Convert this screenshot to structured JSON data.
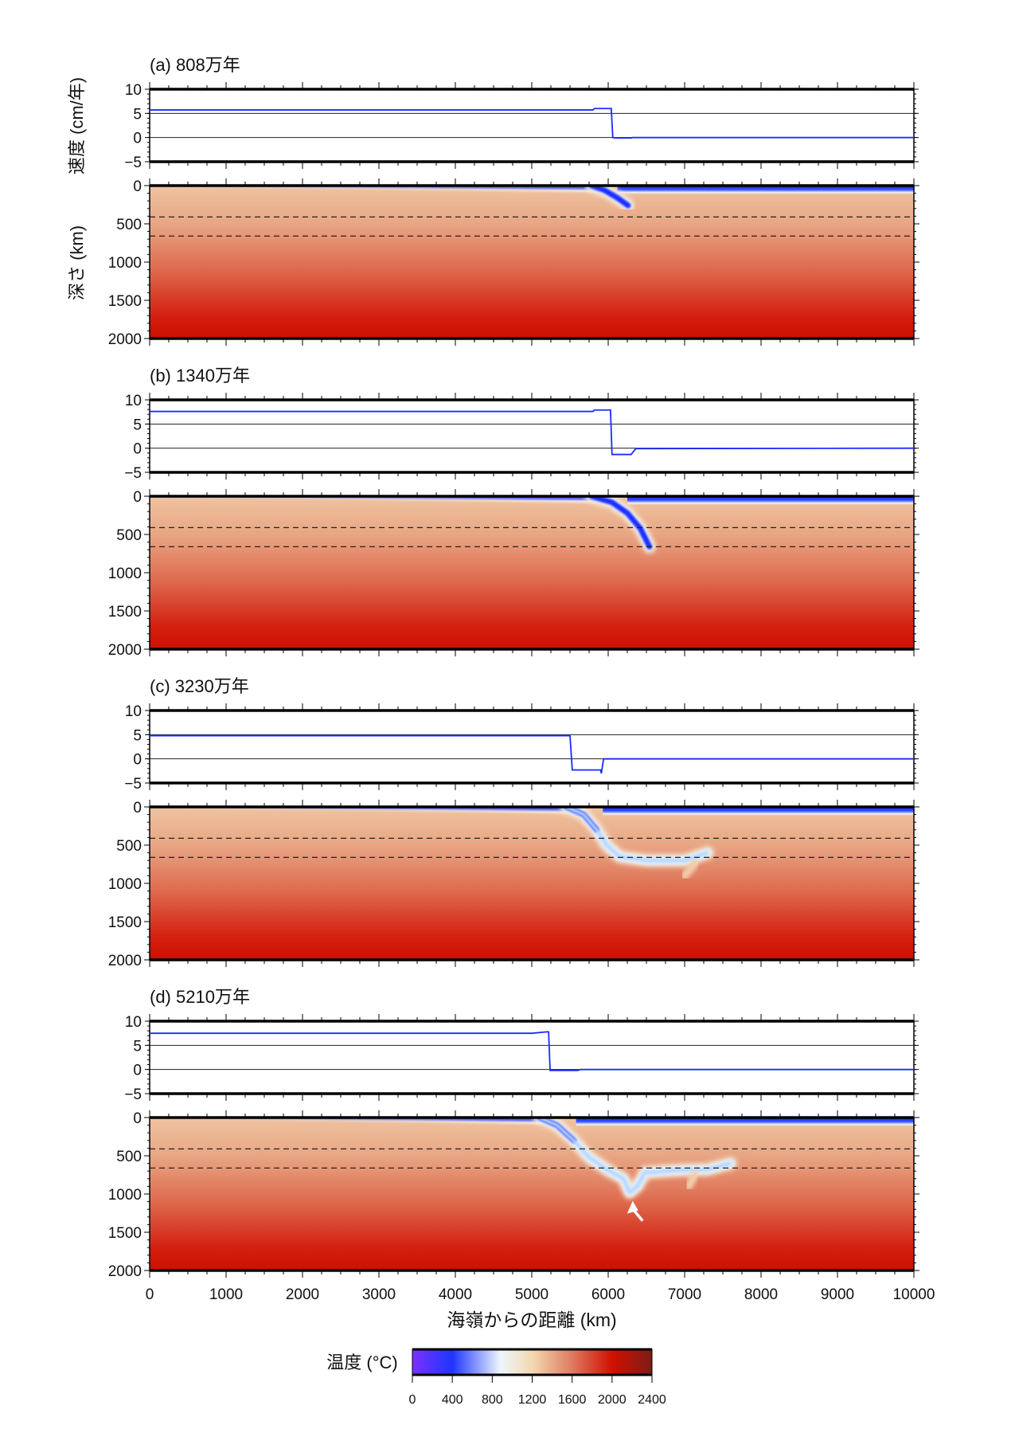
{
  "chart_data": [
    {
      "type": "line",
      "panel": "a",
      "title": "(a) 808万年",
      "velocity": {
        "x": [
          0,
          5800,
          5820,
          6040,
          6060,
          6100,
          6300,
          6320,
          10000
        ],
        "y": [
          5.7,
          5.7,
          6.0,
          6.0,
          0.0,
          -0.1,
          -0.1,
          0,
          0
        ]
      },
      "slab": [
        [
          5780,
          0
        ],
        [
          5950,
          60
        ],
        [
          6120,
          160
        ],
        [
          6260,
          260
        ]
      ],
      "slab_cold_core": true,
      "trench_x": 5800
    },
    {
      "type": "line",
      "panel": "b",
      "title": "(b) 1340万年",
      "velocity": {
        "x": [
          0,
          5800,
          5820,
          6030,
          6050,
          6300,
          6360,
          10000
        ],
        "y": [
          7.6,
          7.6,
          7.9,
          7.9,
          -1.3,
          -1.3,
          -0.1,
          0
        ]
      },
      "slab": [
        [
          5780,
          0
        ],
        [
          6050,
          80
        ],
        [
          6250,
          220
        ],
        [
          6420,
          420
        ],
        [
          6540,
          660
        ]
      ],
      "slab_cold_core": true,
      "trench_x": 5800
    },
    {
      "type": "line",
      "panel": "c",
      "title": "(c) 3230万年",
      "velocity": {
        "x": [
          0,
          5500,
          5530,
          5900,
          5910,
          5940,
          10000
        ],
        "y": [
          4.8,
          4.8,
          -2.3,
          -2.3,
          -3.0,
          0,
          0
        ]
      },
      "slab": [
        [
          5450,
          0
        ],
        [
          5680,
          100
        ],
        [
          5850,
          300
        ],
        [
          5980,
          500
        ],
        [
          6150,
          650
        ],
        [
          6500,
          700
        ],
        [
          7000,
          700
        ],
        [
          7300,
          600
        ]
      ],
      "ghost": [
        [
          7150,
          720
        ],
        [
          7000,
          900
        ]
      ],
      "slab_cold_core": false,
      "trench_x": 5500
    },
    {
      "type": "line",
      "panel": "d",
      "title": "(d) 5210万年",
      "velocity": {
        "x": [
          0,
          5000,
          5200,
          5220,
          5240,
          5600,
          5640,
          10000
        ],
        "y": [
          7.5,
          7.5,
          7.8,
          7.8,
          -0.2,
          -0.2,
          0,
          0
        ]
      },
      "slab": [
        [
          5100,
          0
        ],
        [
          5330,
          100
        ],
        [
          5550,
          300
        ],
        [
          5750,
          520
        ],
        [
          6000,
          690
        ],
        [
          6200,
          800
        ],
        [
          6280,
          980
        ],
        [
          6380,
          900
        ],
        [
          6480,
          720
        ],
        [
          6900,
          690
        ],
        [
          7300,
          680
        ],
        [
          7600,
          600
        ]
      ],
      "ghost": [
        [
          7150,
          720
        ],
        [
          7050,
          900
        ]
      ],
      "slab_cold_core": false,
      "trench_x": 5100,
      "arrow": {
        "from": [
          6450,
          1350
        ],
        "to": [
          6320,
          1090
        ]
      }
    }
  ],
  "axes": {
    "velocity_ylabel": "速度 (cm/年)",
    "depth_ylabel": "深さ (km)",
    "xlabel": "海嶺からの距離 (km)",
    "x_range": [
      0,
      10000
    ],
    "x_ticks": [
      "0",
      "1000",
      "2000",
      "3000",
      "4000",
      "5000",
      "6000",
      "7000",
      "8000",
      "9000",
      "10000"
    ],
    "velocity_range": [
      -5,
      10
    ],
    "velocity_ticks": [
      "10",
      "5",
      "0",
      "−5"
    ],
    "depth_range": [
      0,
      2000
    ],
    "depth_ticks": [
      "0",
      "500",
      "1000",
      "1500",
      "2000"
    ],
    "reference_lines_velocity": [
      5,
      0
    ],
    "dashed_depths_km": [
      410,
      660
    ]
  },
  "colorbar": {
    "label": "温度 (°C)",
    "ticks": [
      "0",
      "400",
      "800",
      "1200",
      "1600",
      "2000",
      "2400"
    ],
    "range": [
      0,
      2400
    ],
    "stops": [
      {
        "t": 0,
        "color": "#7b30ff"
      },
      {
        "t": 400,
        "color": "#1f35ff"
      },
      {
        "t": 880,
        "color": "#eef6ff"
      },
      {
        "t": 1200,
        "color": "#f3d9b0"
      },
      {
        "t": 1600,
        "color": "#df7a60"
      },
      {
        "t": 2000,
        "color": "#d11000"
      },
      {
        "t": 2400,
        "color": "#7c1c18"
      }
    ]
  },
  "colors": {
    "velocity_line": "#1a2cff",
    "arrow": "#ffffff"
  }
}
